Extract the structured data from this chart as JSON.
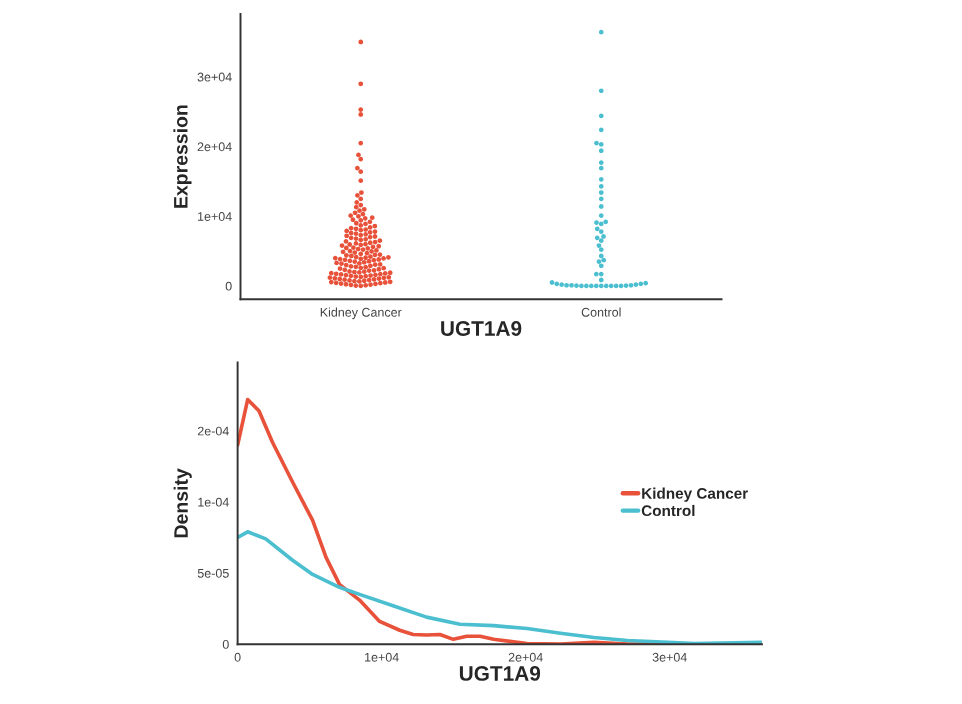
{
  "chart_data": [
    {
      "type": "scatter",
      "xlabel": "UGT1A9",
      "ylabel": "Expression",
      "categories": [
        "Kidney Cancer",
        "Control"
      ],
      "ylim": [
        -1900,
        39000
      ],
      "yticks": [
        0,
        {
          "value": 10000,
          "label": "1e+04"
        },
        {
          "value": 20000,
          "label": "2e+04"
        },
        {
          "value": 30000,
          "label": "3e+04"
        }
      ],
      "grid": false,
      "legend": false,
      "series": [
        {
          "color": "#e8513a",
          "x": [
            "Kidney Cancer",
            "Kidney Cancer",
            "Kidney Cancer",
            "Kidney Cancer",
            "Kidney Cancer",
            "Kidney Cancer",
            "Kidney Cancer",
            "Kidney Cancer",
            "Kidney Cancer",
            "Kidney Cancer",
            "Kidney Cancer",
            "Kidney Cancer",
            "Kidney Cancer",
            "Kidney Cancer",
            "Kidney Cancer",
            "Kidney Cancer",
            "Kidney Cancer",
            "Kidney Cancer",
            "Kidney Cancer",
            "Kidney Cancer",
            "Kidney Cancer",
            "Kidney Cancer",
            "Kidney Cancer",
            "Kidney Cancer",
            "Kidney Cancer",
            "Kidney Cancer",
            "Kidney Cancer",
            "Kidney Cancer",
            "Kidney Cancer",
            "Kidney Cancer",
            "Kidney Cancer",
            "Kidney Cancer",
            "Kidney Cancer",
            "Kidney Cancer",
            "Kidney Cancer",
            "Kidney Cancer",
            "Kidney Cancer",
            "Kidney Cancer",
            "Kidney Cancer",
            "Kidney Cancer",
            "Kidney Cancer",
            "Kidney Cancer",
            "Kidney Cancer",
            "Kidney Cancer",
            "Kidney Cancer",
            "Kidney Cancer",
            "Kidney Cancer",
            "Kidney Cancer",
            "Kidney Cancer",
            "Kidney Cancer",
            "Kidney Cancer",
            "Kidney Cancer",
            "Kidney Cancer",
            "Kidney Cancer",
            "Kidney Cancer",
            "Kidney Cancer",
            "Kidney Cancer",
            "Kidney Cancer",
            "Kidney Cancer",
            "Kidney Cancer",
            "Kidney Cancer",
            "Kidney Cancer",
            "Kidney Cancer",
            "Kidney Cancer",
            "Kidney Cancer",
            "Kidney Cancer",
            "Kidney Cancer",
            "Kidney Cancer",
            "Kidney Cancer",
            "Kidney Cancer",
            "Kidney Cancer",
            "Kidney Cancer",
            "Kidney Cancer",
            "Kidney Cancer",
            "Kidney Cancer",
            "Kidney Cancer",
            "Kidney Cancer",
            "Kidney Cancer",
            "Kidney Cancer",
            "Kidney Cancer",
            "Kidney Cancer",
            "Kidney Cancer",
            "Kidney Cancer",
            "Kidney Cancer",
            "Kidney Cancer",
            "Kidney Cancer",
            "Kidney Cancer",
            "Kidney Cancer",
            "Kidney Cancer",
            "Kidney Cancer",
            "Kidney Cancer",
            "Kidney Cancer",
            "Kidney Cancer",
            "Kidney Cancer",
            "Kidney Cancer",
            "Kidney Cancer",
            "Kidney Cancer",
            "Kidney Cancer",
            "Kidney Cancer",
            "Kidney Cancer",
            "Kidney Cancer",
            "Kidney Cancer",
            "Kidney Cancer",
            "Kidney Cancer",
            "Kidney Cancer",
            "Kidney Cancer",
            "Kidney Cancer",
            "Kidney Cancer",
            "Kidney Cancer",
            "Kidney Cancer",
            "Kidney Cancer",
            "Kidney Cancer",
            "Kidney Cancer",
            "Kidney Cancer",
            "Kidney Cancer",
            "Kidney Cancer",
            "Kidney Cancer",
            "Kidney Cancer",
            "Kidney Cancer",
            "Kidney Cancer",
            "Kidney Cancer",
            "Kidney Cancer",
            "Kidney Cancer",
            "Kidney Cancer",
            "Kidney Cancer",
            "Kidney Cancer",
            "Kidney Cancer",
            "Kidney Cancer",
            "Kidney Cancer",
            "Kidney Cancer",
            "Kidney Cancer",
            "Kidney Cancer",
            "Kidney Cancer",
            "Kidney Cancer",
            "Kidney Cancer",
            "Kidney Cancer",
            "Kidney Cancer",
            "Kidney Cancer",
            "Kidney Cancer",
            "Kidney Cancer",
            "Kidney Cancer",
            "Kidney Cancer",
            "Kidney Cancer",
            "Kidney Cancer",
            "Kidney Cancer",
            "Kidney Cancer",
            "Kidney Cancer",
            "Kidney Cancer",
            "Kidney Cancer",
            "Kidney Cancer",
            "Kidney Cancer",
            "Kidney Cancer"
          ],
          "values": [
            35000,
            29000,
            25300,
            24600,
            20500,
            18800,
            18200,
            16900,
            16400,
            15100,
            13400,
            13000,
            12500,
            12000,
            11600,
            11300,
            11000,
            10800,
            10500,
            10300,
            10100,
            10000,
            9800,
            9700,
            9500,
            9400,
            9200,
            9000,
            8900,
            8700,
            8600,
            8400,
            8300,
            8200,
            8100,
            8000,
            7900,
            7800,
            7700,
            7600,
            7500,
            7400,
            7300,
            7200,
            7100,
            7000,
            6900,
            6800,
            6700,
            6600,
            6500,
            6400,
            6300,
            6200,
            6100,
            6000,
            5900,
            5800,
            5700,
            5600,
            5500,
            5400,
            5300,
            5200,
            5100,
            5000,
            4900,
            4800,
            4700,
            4600,
            4500,
            4400,
            4300,
            4200,
            4100,
            4000,
            5950,
            5450,
            4950,
            4450,
            4150,
            4050,
            3950,
            3900,
            3850,
            3800,
            3700,
            3600,
            3500,
            3400,
            3300,
            3200,
            3100,
            3000,
            2900,
            2800,
            2700,
            2600,
            2500,
            2400,
            2300,
            2200,
            2100,
            2000,
            3750,
            3250,
            2750,
            2250,
            3550,
            3050,
            2550,
            2050,
            1950,
            1900,
            1850,
            1800,
            1700,
            1600,
            1500,
            1400,
            1300,
            1200,
            1100,
            1000,
            900,
            800,
            700,
            600,
            500,
            400,
            300,
            200,
            100,
            50,
            1750,
            1550,
            1350,
            1150,
            950,
            750,
            550,
            350,
            150,
            250,
            450,
            650,
            850,
            1050,
            1250,
            1450,
            1650,
            0
          ]
        },
        {
          "color": "#4bbfd0",
          "x": [
            "Control",
            "Control",
            "Control",
            "Control",
            "Control",
            "Control",
            "Control",
            "Control",
            "Control",
            "Control",
            "Control",
            "Control",
            "Control",
            "Control",
            "Control",
            "Control",
            "Control",
            "Control",
            "Control",
            "Control",
            "Control",
            "Control",
            "Control",
            "Control",
            "Control",
            "Control",
            "Control",
            "Control",
            "Control",
            "Control",
            "Control",
            "Control",
            "Control",
            "Control",
            "Control",
            "Control",
            "Control",
            "Control",
            "Control",
            "Control",
            "Control",
            "Control",
            "Control",
            "Control",
            "Control",
            "Control",
            "Control",
            "Control",
            "Control",
            "Control",
            "Control",
            "Control"
          ],
          "values": [
            36400,
            28000,
            24400,
            22400,
            20500,
            20300,
            19400,
            17700,
            16900,
            15300,
            14300,
            13400,
            12500,
            11400,
            10100,
            9200,
            9100,
            8900,
            8200,
            7800,
            7100,
            6900,
            6500,
            5800,
            5200,
            4300,
            3700,
            3500,
            2900,
            1700,
            1700,
            860,
            500,
            400,
            300,
            300,
            200,
            200,
            100,
            100,
            100,
            50,
            50,
            0,
            0,
            0,
            0,
            0,
            0,
            0,
            0,
            0
          ]
        }
      ]
    },
    {
      "type": "line",
      "xlabel": "UGT1A9",
      "ylabel": "Density",
      "xlim": [
        0,
        36400
      ],
      "xticks": [
        0,
        {
          "value": 10000,
          "label": "1e+04"
        },
        {
          "value": 20000,
          "label": "2e+04"
        },
        {
          "value": 30000,
          "label": "3e+04"
        }
      ],
      "ylim": [
        0,
        0.000198
      ],
      "yticks": [
        0,
        {
          "value": 5e-05,
          "label": "5e-05"
        },
        {
          "value": 0.0001,
          "label": "1e-04"
        },
        {
          "value": 0.00015,
          "label": "2e-04"
        }
      ],
      "grid": false,
      "legend": "right",
      "marker": "none",
      "line_style": "solid",
      "series": [
        {
          "name": "Kidney Cancer",
          "color": "#e8513a",
          "x": [
            0,
            698,
            1488,
            2419,
            3814,
            5209,
            6140,
            7070,
            8465,
            9860,
            11256,
            12186,
            13116,
            14047,
            14977,
            15907,
            16837,
            17767,
            20093,
            22419,
            24744,
            27070,
            36372
          ],
          "values": [
            0.00014,
            0.000172,
            0.000164,
            0.000142,
            0.000114,
            8.7e-05,
            6.1e-05,
            4.2e-05,
            3.1e-05,
            1.6e-05,
            9.8e-06,
            6.8e-06,
            6.4e-06,
            6.8e-06,
            3.4e-06,
            5.6e-06,
            5.6e-06,
            3.4e-06,
            4e-07,
            0,
            1.3e-06,
            0,
            0
          ]
        },
        {
          "name": "Control",
          "color": "#4bbfd0",
          "x": [
            0,
            698,
            1953,
            3814,
            5209,
            7070,
            8465,
            10791,
            13116,
            15442,
            17767,
            20093,
            22419,
            24744,
            27070,
            29860,
            31721,
            36372
          ],
          "values": [
            7.5e-05,
            7.9e-05,
            7.4e-05,
            5.9e-05,
            4.9e-05,
            4e-05,
            3.5e-05,
            2.7e-05,
            1.9e-05,
            1.4e-05,
            1.3e-05,
            1.1e-05,
            7.7e-06,
            4.7e-06,
            2.6e-06,
            1.3e-06,
            4e-07,
            1.3e-06
          ]
        }
      ]
    }
  ]
}
